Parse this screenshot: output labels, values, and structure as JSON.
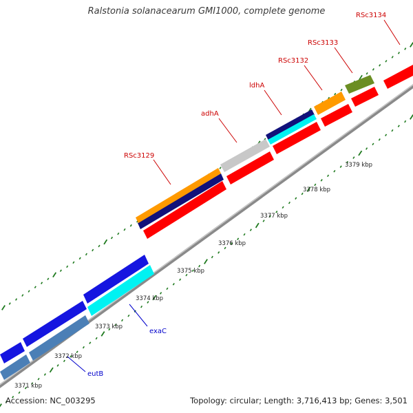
{
  "title": "Ralstonia solanacearum GMI1000, complete genome",
  "footer": {
    "accession": "Accession: NC_003295",
    "summary": "Topology: circular; Length: 3,716,413 bp; Genes: 3,501"
  },
  "colors": {
    "backbone": "#8a8a8a",
    "tick": "#1f7a1f",
    "red_gene": "#ff0000",
    "blue_gene": "#1515e0",
    "cyan_gene": "#00f2f2",
    "steel_gene": "#4b7fb6",
    "navy_gene": "#11117a",
    "orange_gene": "#ff9a00",
    "silver_gene": "#c8c8c8",
    "olive_gene": "#6b8e23",
    "label_red": "#cc0000",
    "label_blue": "#0000cc"
  },
  "ruler": {
    "unit": "kbp",
    "labels": [
      "3371 kbp",
      "3372 kbp",
      "3373 kbp",
      "3374 kbp",
      "3375 kbp",
      "3376 kbp",
      "3377 kbp",
      "3378 kbp",
      "3379 kbp"
    ]
  },
  "genes": [
    {
      "name": "RSc3129",
      "color": "red"
    },
    {
      "name": "adhA",
      "color": "red"
    },
    {
      "name": "ldhA",
      "color": "red"
    },
    {
      "name": "RSc3132",
      "color": "red"
    },
    {
      "name": "RSc3133",
      "color": "red"
    },
    {
      "name": "RSc3134",
      "color": "red"
    },
    {
      "name": "exaC",
      "color": "blue"
    },
    {
      "name": "eutB",
      "color": "blue"
    }
  ]
}
